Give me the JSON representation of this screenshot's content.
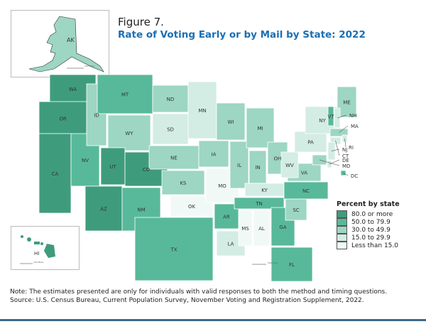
{
  "figure_number": "Figure 7.",
  "title": "Rate of Voting Early or by Mail by State: 2022",
  "legend": {
    "title": "Percent by state",
    "classes": [
      {
        "label": "80.0 or more",
        "color": "#3e9c7d"
      },
      {
        "label": "50.0 to 79.9",
        "color": "#58b99a"
      },
      {
        "label": "30.0 to 49.9",
        "color": "#9dd6c3"
      },
      {
        "label": "15.0 to 29.9",
        "color": "#d3ece4"
      },
      {
        "label": "Less than 15.0",
        "color": "#f1f9f7"
      }
    ]
  },
  "states": {
    "WA": 0,
    "OR": 0,
    "CA": 0,
    "AZ": 0,
    "UT": 0,
    "CO": 0,
    "HI": 0,
    "NV": 1,
    "MT": 1,
    "NM": 1,
    "TX": 1,
    "AR": 1,
    "TN": 1,
    "NC": 1,
    "GA": 1,
    "FL": 1,
    "VT": 1,
    "DC": 1,
    "AK": 2,
    "ID": 2,
    "WY": 2,
    "ND": 2,
    "NE": 2,
    "KS": 2,
    "IA": 2,
    "WI": 2,
    "MI": 2,
    "IL": 2,
    "IN": 2,
    "OH": 2,
    "VA": 2,
    "SC": 2,
    "ME": 2,
    "MD": 2,
    "MA": 2,
    "SD": 3,
    "MN": 3,
    "LA": 3,
    "KY": 3,
    "WV": 3,
    "PA": 3,
    "NY": 3,
    "NH": 3,
    "CT": 3,
    "NJ": 3,
    "DE": 3,
    "RI": 3,
    "MO": 4,
    "OK": 4,
    "MS": 4,
    "AL": 4
  },
  "scale_labels": {
    "alaska": "500 Miles",
    "hawaii": "100 Miles",
    "conus": "500 Miles"
  },
  "note": "Note: The estimates presented are only for individuals with valid responses to both the method and timing questions.",
  "source": "Source: U.S. Census Bureau, Current Population Survey, November Voting and Registration Supplement, 2022."
}
